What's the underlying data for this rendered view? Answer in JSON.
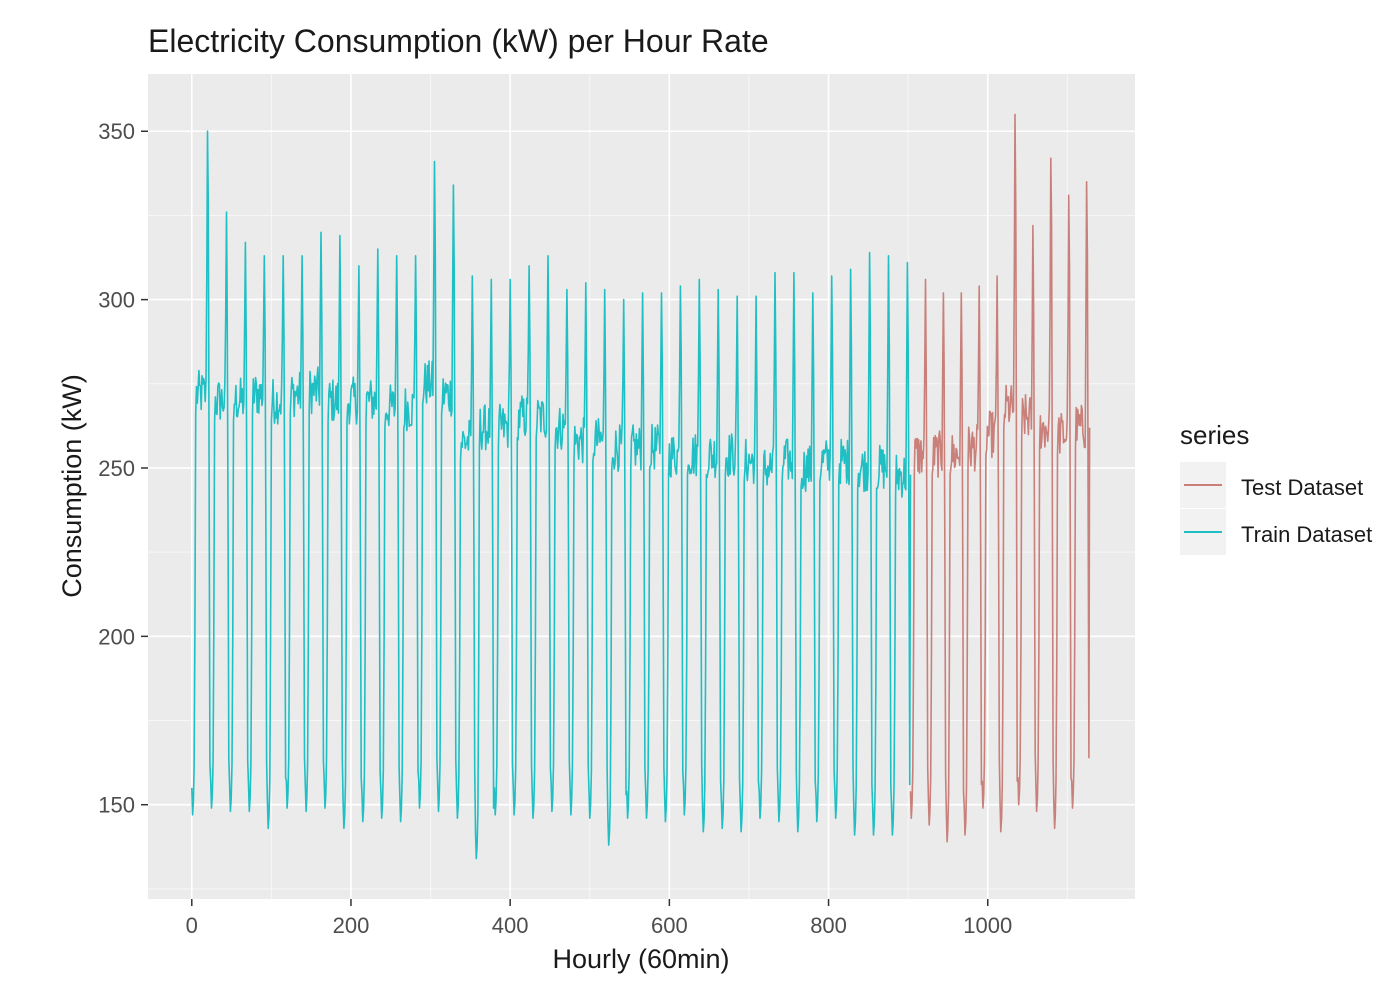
{
  "chart_data": {
    "type": "line",
    "title": "Electricity Consumption (kW) per Hour Rate",
    "xlabel": "Hourly (60min)",
    "ylabel": "Consumption (kW)",
    "xlim": [
      -55,
      1185
    ],
    "ylim": [
      122,
      367
    ],
    "x_ticks": [
      0,
      200,
      400,
      600,
      800,
      1000
    ],
    "x_tick_labels": [
      "0",
      "200",
      "400",
      "600",
      "800",
      "1000"
    ],
    "y_ticks": [
      150,
      200,
      250,
      300,
      350
    ],
    "y_tick_labels": [
      "150",
      "200",
      "250",
      "300",
      "350"
    ],
    "grid": true,
    "legend": {
      "title": "series",
      "placement": "right",
      "entries": [
        {
          "label": "Test Dataset",
          "color": "#c9807a"
        },
        {
          "label": "Train Dataset",
          "color": "#1fbfc4"
        }
      ]
    },
    "series": [
      {
        "name": "Train Dataset",
        "color": "#1fbfc4",
        "x_start": 0,
        "x_end": 903,
        "day_peaks_kw": [
          350,
          326,
          317,
          313,
          313,
          313,
          320,
          319,
          310,
          315,
          313,
          313,
          341,
          334,
          307,
          306,
          306,
          310,
          313,
          303,
          305,
          303,
          300,
          302,
          302,
          304,
          306,
          303,
          301,
          301,
          308,
          308,
          302,
          307,
          309,
          314,
          313,
          311
        ],
        "day_troughs_kw": [
          147,
          149,
          148,
          148,
          143,
          149,
          148,
          149,
          143,
          145,
          146,
          145,
          149,
          148,
          146,
          134,
          147,
          147,
          146,
          148,
          147,
          146,
          138,
          146,
          146,
          145,
          147,
          142,
          143,
          142,
          146,
          145,
          142,
          145,
          146,
          141,
          141,
          141
        ],
        "plateau_kw": [
          272,
          270,
          270,
          272,
          270,
          272,
          273,
          270,
          270,
          270,
          268,
          268,
          275,
          272,
          258,
          262,
          262,
          265,
          265,
          262,
          258,
          258,
          256,
          256,
          256,
          254,
          254,
          254,
          254,
          252,
          250,
          252,
          250,
          252,
          252,
          250,
          250,
          248
        ]
      },
      {
        "name": "Test Dataset",
        "color": "#c9807a",
        "x_start": 903,
        "x_end": 1128,
        "day_peaks_kw": [
          306,
          302,
          302,
          304,
          307,
          355,
          322,
          342,
          331,
          335
        ],
        "day_troughs_kw": [
          146,
          144,
          139,
          141,
          149,
          142,
          150,
          148,
          143,
          149
        ],
        "plateau_kw": [
          254,
          254,
          254,
          256,
          260,
          268,
          265,
          262,
          260,
          262
        ]
      }
    ]
  }
}
